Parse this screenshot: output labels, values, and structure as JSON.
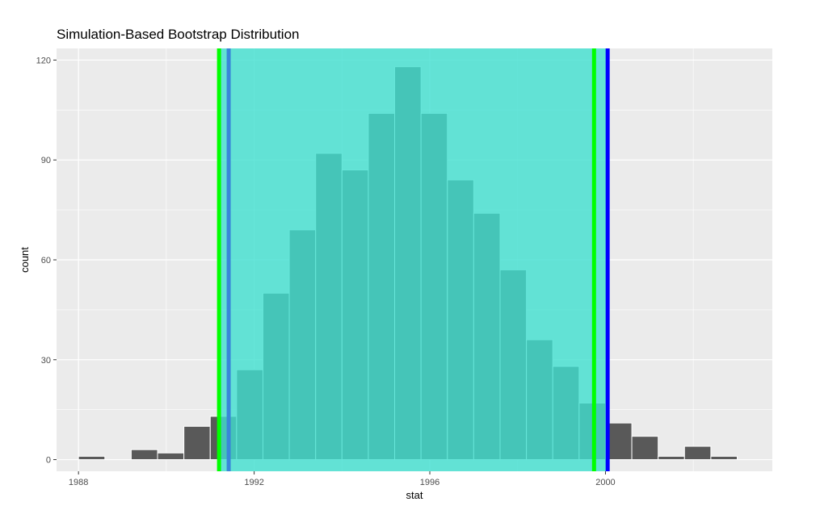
{
  "chart_data": {
    "type": "histogram",
    "title": "Simulation-Based Bootstrap Distribution",
    "xlabel": "stat",
    "ylabel": "count",
    "xlim": [
      1987.5,
      2003.8
    ],
    "ylim": [
      -3.5,
      123.5
    ],
    "x_ticks": [
      1988,
      1992,
      1996,
      2000
    ],
    "x_tick_labels": [
      "1988",
      "1992",
      "1996",
      "2000"
    ],
    "y_ticks": [
      0,
      30,
      60,
      90,
      120
    ],
    "y_tick_labels": [
      "0",
      "30",
      "60",
      "90",
      "120"
    ],
    "grid": true,
    "bin_width": 0.6,
    "bins": [
      {
        "x": 1988.3,
        "count": 1
      },
      {
        "x": 1989.5,
        "count": 3
      },
      {
        "x": 1990.1,
        "count": 2
      },
      {
        "x": 1990.7,
        "count": 10
      },
      {
        "x": 1991.3,
        "count": 13
      },
      {
        "x": 1991.9,
        "count": 27
      },
      {
        "x": 1992.5,
        "count": 50
      },
      {
        "x": 1993.1,
        "count": 69
      },
      {
        "x": 1993.7,
        "count": 92
      },
      {
        "x": 1994.3,
        "count": 87
      },
      {
        "x": 1994.9,
        "count": 104
      },
      {
        "x": 1995.5,
        "count": 118
      },
      {
        "x": 1996.1,
        "count": 104
      },
      {
        "x": 1996.7,
        "count": 84
      },
      {
        "x": 1997.3,
        "count": 74
      },
      {
        "x": 1997.9,
        "count": 57
      },
      {
        "x": 1998.5,
        "count": 36
      },
      {
        "x": 1999.1,
        "count": 28
      },
      {
        "x": 1999.7,
        "count": 17
      },
      {
        "x": 2000.3,
        "count": 11
      },
      {
        "x": 2000.9,
        "count": 7
      },
      {
        "x": 2001.5,
        "count": 1
      },
      {
        "x": 2002.1,
        "count": 4
      },
      {
        "x": 2002.7,
        "count": 1
      }
    ],
    "shaded_interval": {
      "from": 1991.2,
      "to": 2000.05,
      "color": "#40e0d0"
    },
    "vertical_lines": [
      {
        "x": 1991.2,
        "color": "#00ff00"
      },
      {
        "x": 1991.42,
        "color": "#3a86d8"
      },
      {
        "x": 1999.74,
        "color": "#00ff00"
      },
      {
        "x": 2000.05,
        "color": "#0000ff"
      }
    ],
    "colors": {
      "panel_bg": "#ebebeb",
      "grid_major": "#ffffff",
      "bar_fill": "#595959",
      "bar_outline": "#ffffff",
      "text_tick": "#4d4d4d",
      "tick_mark": "#333333"
    }
  }
}
